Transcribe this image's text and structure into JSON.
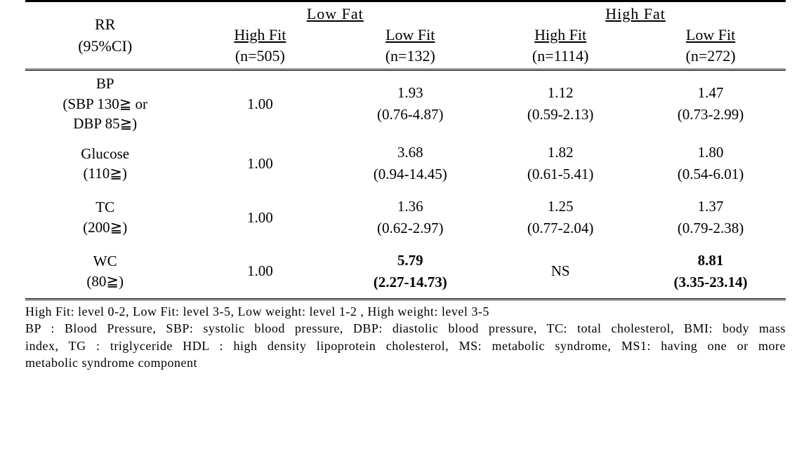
{
  "header": {
    "rr_label_line1": "RR",
    "rr_label_line2": "(95%CI)",
    "groups": [
      {
        "label": "Low Fat"
      },
      {
        "label": "High Fat"
      }
    ],
    "subcols": [
      {
        "fit": "High Fit",
        "n": "(n=505)"
      },
      {
        "fit": "Low Fit",
        "n": "(n=132)"
      },
      {
        "fit": "High Fit",
        "n": "(n=1114)"
      },
      {
        "fit": "Low Fit",
        "n": "(n=272)"
      }
    ]
  },
  "rows": [
    {
      "label_line1": "BP",
      "label_line2": "(SBP 130≧ or",
      "label_line3": "DBP 85≧)",
      "cells": [
        {
          "rr": "1.00",
          "ci": ""
        },
        {
          "rr": "1.93",
          "ci": "(0.76-4.87)"
        },
        {
          "rr": "1.12",
          "ci": "(0.59-2.13)"
        },
        {
          "rr": "1.47",
          "ci": "(0.73-2.99)"
        }
      ]
    },
    {
      "label_line1": "Glucose",
      "label_line2": "(110≧)",
      "label_line3": "",
      "cells": [
        {
          "rr": "1.00",
          "ci": ""
        },
        {
          "rr": "3.68",
          "ci": "(0.94-14.45)"
        },
        {
          "rr": "1.82",
          "ci": "(0.61-5.41)"
        },
        {
          "rr": "1.80",
          "ci": "(0.54-6.01)"
        }
      ]
    },
    {
      "label_line1": "TC",
      "label_line2": "(200≧)",
      "label_line3": "",
      "cells": [
        {
          "rr": "1.00",
          "ci": ""
        },
        {
          "rr": "1.36",
          "ci": "(0.62-2.97)"
        },
        {
          "rr": "1.25",
          "ci": "(0.77-2.04)"
        },
        {
          "rr": "1.37",
          "ci": "(0.79-2.38)"
        }
      ]
    },
    {
      "label_line1": "WC",
      "label_line2": "(80≧)",
      "label_line3": "",
      "cells": [
        {
          "rr": "1.00",
          "ci": ""
        },
        {
          "rr": "5.79",
          "ci": "(2.27-14.73)",
          "bold": true
        },
        {
          "rr": "NS",
          "ci": ""
        },
        {
          "rr": "8.81",
          "ci": "(3.35-23.14)",
          "bold": true
        }
      ]
    }
  ],
  "footnotes": {
    "line1": "High Fit: level 0-2, Low Fit: level 3-5, Low weight: level 1-2 , High weight: level 3-5",
    "line2": "BP : Blood Pressure, SBP: systolic blood pressure, DBP: diastolic blood pressure, TC: total cholesterol, BMI: body mass",
    "line3": "index, TG : triglyceride HDL : high density lipoprotein cholesterol, MS: metabolic syndrome, MS1: having one or more",
    "line4": "metabolic syndrome component"
  },
  "style": {
    "bg": "#ffffff",
    "fg": "#000000",
    "border_color": "#000000",
    "header_fontsize": 22,
    "body_fontsize": 21,
    "footnote_fontsize": 18
  }
}
